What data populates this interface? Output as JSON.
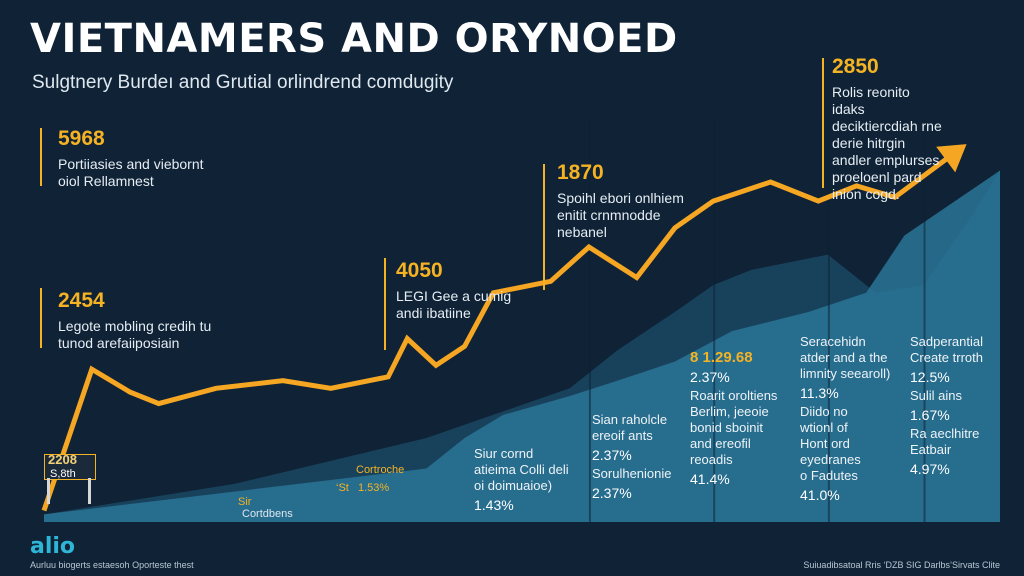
{
  "title": "VIETNAMERS AND ORYNOED",
  "subtitle": "Sulgtnery Burdeı and Grutial orlindrend comdugity",
  "chart_data": {
    "type": "area",
    "xlim": [
      0,
      100
    ],
    "ylim": [
      0,
      100
    ],
    "trend_line": {
      "name": "trend",
      "x": [
        0,
        5,
        9,
        12,
        18,
        25,
        30,
        36,
        38,
        41,
        44,
        47,
        53,
        57,
        62,
        66,
        70,
        76,
        81,
        85,
        89,
        96
      ],
      "y": [
        3,
        40,
        34,
        31,
        35,
        37,
        35,
        38,
        48,
        41,
        46,
        60,
        63,
        72,
        64,
        77,
        84,
        89,
        84,
        88,
        85,
        98
      ],
      "color": "#f5a623"
    },
    "area_series": [
      {
        "name": "back",
        "color": "#1c4d69",
        "x": [
          0,
          20,
          40,
          55,
          60,
          66,
          70,
          74,
          78,
          82,
          87,
          92,
          97,
          100
        ],
        "y": [
          2,
          10,
          22,
          35,
          45,
          55,
          62,
          66,
          68,
          70,
          60,
          62,
          80,
          92
        ]
      },
      {
        "name": "front",
        "color": "#2a7496",
        "x": [
          0,
          20,
          40,
          44,
          48,
          55,
          60,
          66,
          72,
          80,
          86,
          90,
          100
        ],
        "y": [
          2,
          8,
          14,
          22,
          28,
          33,
          37,
          42,
          50,
          55,
          60,
          75,
          92
        ]
      }
    ],
    "annotations": [
      {
        "value": "5968",
        "text": "Portiiasies and viebornt oiol Rellamnest"
      },
      {
        "value": "2454",
        "text": "Legote mobling credih tu tunod arefaiiposiain"
      },
      {
        "value": "4050",
        "text": "LEGI Gee a cumig andi ibatiine"
      },
      {
        "value": "1870",
        "text": "Spoihl ebori onlhiem enitit crnmnodde nebanel"
      },
      {
        "value": "2850",
        "text": "Rolis reonito idaks deciktiercdiah rne derie hitrgin andler emplurses proeloenl pard inion cogd."
      }
    ],
    "columns": [
      {
        "header": "",
        "lines": [
          "Siur cornd",
          "atieima Colli deli",
          "oi doimuaioe)"
        ],
        "pct": "1.43%"
      },
      {
        "header": "",
        "lines": [
          "Sian raholcle",
          "ereoif ants"
        ],
        "pct": "2.37%",
        "lines2": [
          "Sorulhenionie"
        ],
        "pct2": "2.37%"
      },
      {
        "header": "8 1.29.68",
        "pct": "2.37%",
        "lines": [
          "Roarit oroltiens",
          "Berlim, jeeoie",
          "bonid sboinit",
          "and ereofil",
          "reoadis"
        ],
        "pct2": "41.4%"
      },
      {
        "header": "",
        "lines": [
          "Seracehidn",
          "atder and a the",
          "limnity seearoll)"
        ],
        "pct": "11.3%",
        "lines2": [
          "Diido no",
          "wtionl of",
          "Hont ord",
          "eyedranes",
          "o Fadutes"
        ],
        "pct2": "41.0%"
      },
      {
        "header": "",
        "lines": [
          "Sadperantial",
          "Create trroth"
        ],
        "pct": "12.5%",
        "lines2": [
          "Sulil ains"
        ],
        "pct2": "1.67%",
        "lines3": [
          "Ra aeclhitre",
          "Eatbair"
        ],
        "pct3": "4.97%"
      }
    ],
    "sign": {
      "value": "2208",
      "label": "S,8th"
    },
    "small_labels": [
      "Cortroche",
      "Sir",
      "Cortdbens",
      "‘St"
    ],
    "small_pct": "1.53%"
  },
  "logo": "alio",
  "logo_sub": "Aurluu biogerts estaesoh Oporteste thest",
  "credit": "Suiuadibsatoal Rris ‘DZB SIG Darlbs’Sirvats Clite"
}
